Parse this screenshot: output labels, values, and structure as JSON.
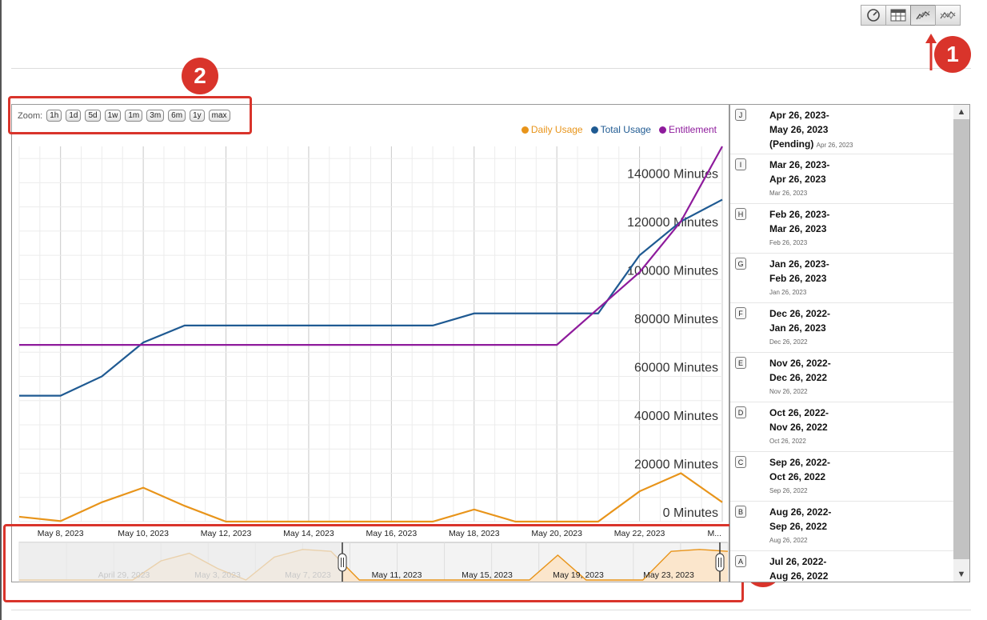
{
  "toolbar": {
    "buttons": [
      {
        "icon": "gauge-icon",
        "active": false
      },
      {
        "icon": "table-icon",
        "active": false
      },
      {
        "icon": "line-chart-icon",
        "active": true
      },
      {
        "icon": "compare-chart-icon",
        "active": false
      }
    ]
  },
  "callouts": [
    "1",
    "2",
    "3"
  ],
  "zoom": {
    "label": "Zoom:",
    "options": [
      "1h",
      "1d",
      "5d",
      "1w",
      "1m",
      "3m",
      "6m",
      "1y",
      "max"
    ]
  },
  "colors": {
    "daily": "#e8941a",
    "total": "#1f5a92",
    "entitlement": "#8e1b9c",
    "accent": "#d9342b"
  },
  "chart_data": {
    "type": "line",
    "legend_position": "top-right",
    "grid": true,
    "y_ticks": [
      "0 Minutes",
      "20000 Minutes",
      "40000 Minutes",
      "60000 Minutes",
      "80000 Minutes",
      "100000 Minutes",
      "120000 Minutes",
      "140000 Minutes"
    ],
    "ylim": [
      0,
      155000
    ],
    "x": [
      "May 7, 2023",
      "May 8, 2023",
      "May 9, 2023",
      "May 10, 2023",
      "May 11, 2023",
      "May 12, 2023",
      "May 13, 2023",
      "May 14, 2023",
      "May 15, 2023",
      "May 16, 2023",
      "May 17, 2023",
      "May 18, 2023",
      "May 19, 2023",
      "May 20, 2023",
      "May 21, 2023",
      "May 22, 2023",
      "May 23, 2023",
      "May 24, 2023"
    ],
    "x_ticks": [
      "May 8, 2023",
      "May 10, 2023",
      "May 12, 2023",
      "May 14, 2023",
      "May 16, 2023",
      "May 18, 2023",
      "May 20, 2023",
      "May 22, 2023",
      "M..."
    ],
    "x_tick_index": [
      1,
      3,
      5,
      7,
      9,
      11,
      13,
      15,
      17
    ],
    "series": [
      {
        "name": "Daily Usage",
        "values": [
          2000,
          200,
          8000,
          14000,
          6500,
          0,
          0,
          0,
          0,
          0,
          0,
          5000,
          0,
          0,
          0,
          12500,
          20000,
          8000
        ]
      },
      {
        "name": "Total Usage",
        "values": [
          52000,
          52000,
          60000,
          74000,
          81000,
          81000,
          81000,
          81000,
          81000,
          81000,
          81000,
          86000,
          86000,
          86000,
          86000,
          110000,
          124000,
          133000
        ]
      },
      {
        "name": "Entitlement",
        "values": [
          73000,
          73000,
          73000,
          73000,
          73000,
          73000,
          73000,
          73000,
          73000,
          73000,
          73000,
          73000,
          73000,
          73000,
          88000,
          103000,
          124000,
          155000
        ]
      }
    ]
  },
  "navigator": {
    "labels": [
      "April 29, 2023",
      "May 3, 2023",
      "May 7, 2023",
      "May 11, 2023",
      "May 15, 2023",
      "May 19, 2023",
      "May 23, 2023"
    ],
    "values": [
      0,
      0,
      0,
      0,
      0,
      10,
      14,
      6,
      0,
      12,
      16,
      15,
      0,
      0,
      0,
      0,
      0,
      0,
      0,
      13,
      0,
      0,
      0,
      15,
      16,
      15
    ]
  },
  "periods": [
    {
      "letter": "J",
      "range": "Apr 26, 2023-",
      "range2": "May 26, 2023",
      "extra": "(Pending)",
      "sub": "Apr 26, 2023"
    },
    {
      "letter": "I",
      "range": "Mar 26, 2023-",
      "range2": "Apr 26, 2023",
      "extra": "",
      "sub": "Mar 26, 2023"
    },
    {
      "letter": "H",
      "range": "Feb 26, 2023-",
      "range2": "Mar 26, 2023",
      "extra": "",
      "sub": "Feb 26, 2023"
    },
    {
      "letter": "G",
      "range": "Jan 26, 2023-",
      "range2": "Feb 26, 2023",
      "extra": "",
      "sub": "Jan 26, 2023"
    },
    {
      "letter": "F",
      "range": "Dec 26, 2022-",
      "range2": "Jan 26, 2023",
      "extra": "",
      "sub": "Dec 26, 2022"
    },
    {
      "letter": "E",
      "range": "Nov 26, 2022-",
      "range2": "Dec 26, 2022",
      "extra": "",
      "sub": "Nov 26, 2022"
    },
    {
      "letter": "D",
      "range": "Oct 26, 2022-",
      "range2": "Nov 26, 2022",
      "extra": "",
      "sub": "Oct 26, 2022"
    },
    {
      "letter": "C",
      "range": "Sep 26, 2022-",
      "range2": "Oct 26, 2022",
      "extra": "",
      "sub": "Sep 26, 2022"
    },
    {
      "letter": "B",
      "range": "Aug 26, 2022-",
      "range2": "Sep 26, 2022",
      "extra": "",
      "sub": "Aug 26, 2022"
    },
    {
      "letter": "A",
      "range": "Jul 26, 2022-",
      "range2": "Aug 26, 2022",
      "extra": "",
      "sub": "Jul 26, 2022"
    }
  ]
}
